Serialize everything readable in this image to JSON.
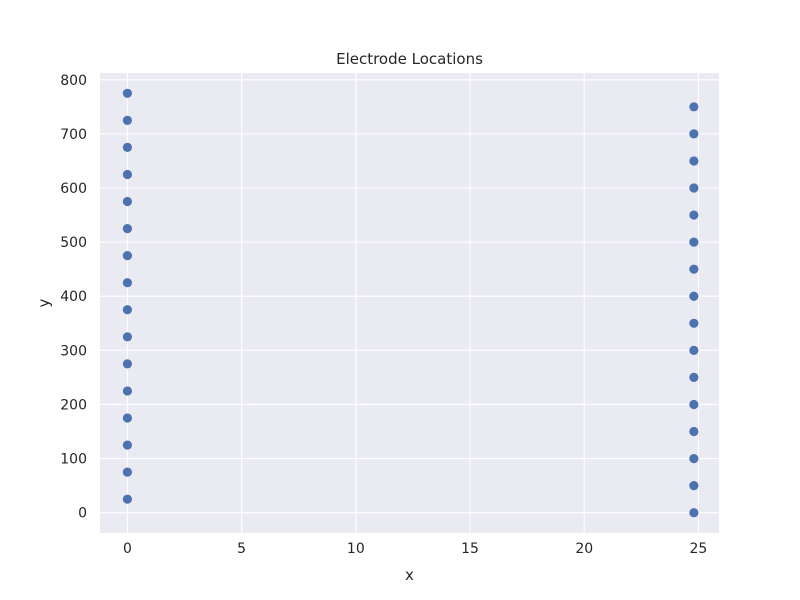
{
  "chart_data": {
    "type": "scatter",
    "title": "Electrode Locations",
    "xlabel": "x",
    "ylabel": "y",
    "xlim": [
      -1.2,
      25.9
    ],
    "ylim": [
      -37.5,
      812.5
    ],
    "xticks": [
      0,
      5,
      10,
      15,
      20,
      25
    ],
    "yticks": [
      0,
      100,
      200,
      300,
      400,
      500,
      600,
      700,
      800
    ],
    "grid": true,
    "background_color": "#eaeaf2",
    "grid_color": "#ffffff",
    "marker_color": "#4c72b0",
    "series": [
      {
        "x": [
          0,
          0,
          0,
          0,
          0,
          0,
          0,
          0,
          0,
          0,
          0,
          0,
          0,
          0,
          0,
          0
        ],
        "y": [
          25,
          75,
          125,
          175,
          225,
          275,
          325,
          375,
          425,
          475,
          525,
          575,
          625,
          675,
          725,
          775
        ]
      },
      {
        "x": [
          24.8,
          24.8,
          24.8,
          24.8,
          24.8,
          24.8,
          24.8,
          24.8,
          24.8,
          24.8,
          24.8,
          24.8,
          24.8,
          24.8,
          24.8,
          24.8
        ],
        "y": [
          0,
          50,
          100,
          150,
          200,
          250,
          300,
          350,
          400,
          450,
          500,
          550,
          600,
          650,
          700,
          750
        ]
      }
    ]
  }
}
